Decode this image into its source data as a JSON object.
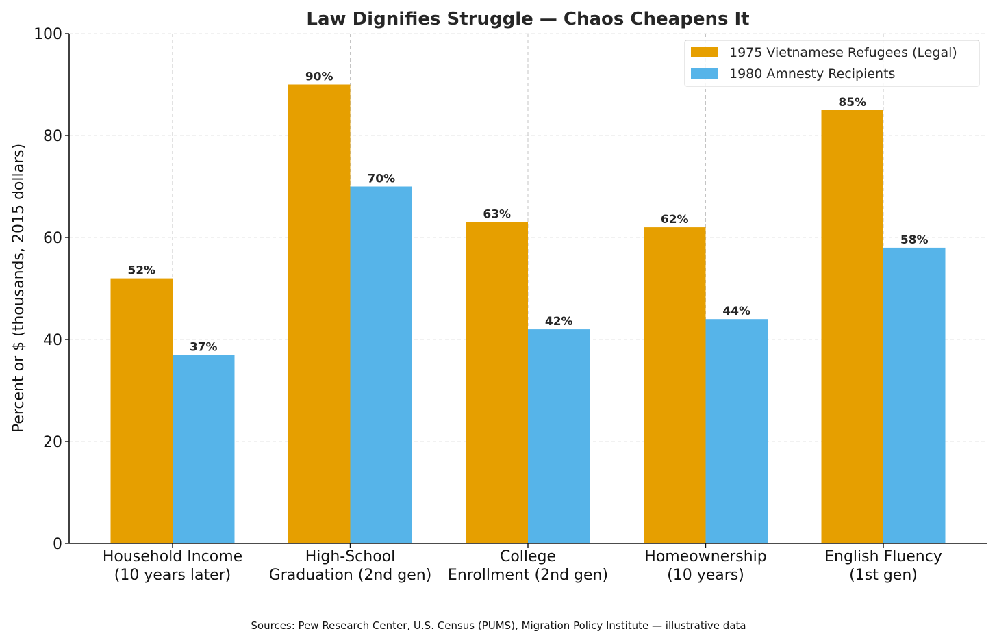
{
  "chart_data": {
    "type": "bar",
    "title": "Law Dignifies Struggle — Chaos Cheapens It",
    "xlabel": "",
    "ylabel": "Percent or $ (thousands, 2015 dollars)",
    "ylim": [
      0,
      100
    ],
    "yticks": [
      0,
      20,
      40,
      60,
      80,
      100
    ],
    "grid": true,
    "legend_position": "top-right",
    "categories": [
      [
        "Household Income",
        "(10 years later)"
      ],
      [
        "High-School",
        "Graduation (2nd gen)"
      ],
      [
        "College",
        "Enrollment (2nd gen)"
      ],
      [
        "Homeownership",
        "(10 years)"
      ],
      [
        "English Fluency",
        "(1st gen)"
      ]
    ],
    "series": [
      {
        "name": "1975 Vietnamese Refugees (Legal)",
        "color": "#E69F00",
        "values": [
          52,
          90,
          63,
          62,
          85
        ],
        "labels": [
          "52%",
          "90%",
          "63%",
          "62%",
          "85%"
        ]
      },
      {
        "name": "1980 Amnesty Recipients",
        "color": "#56B4E9",
        "values": [
          37,
          70,
          42,
          44,
          58
        ],
        "labels": [
          "37%",
          "70%",
          "42%",
          "44%",
          "58%"
        ]
      }
    ],
    "footnote": "Sources: Pew Research Center, U.S. Census (PUMS), Migration Policy Institute — illustrative data"
  }
}
